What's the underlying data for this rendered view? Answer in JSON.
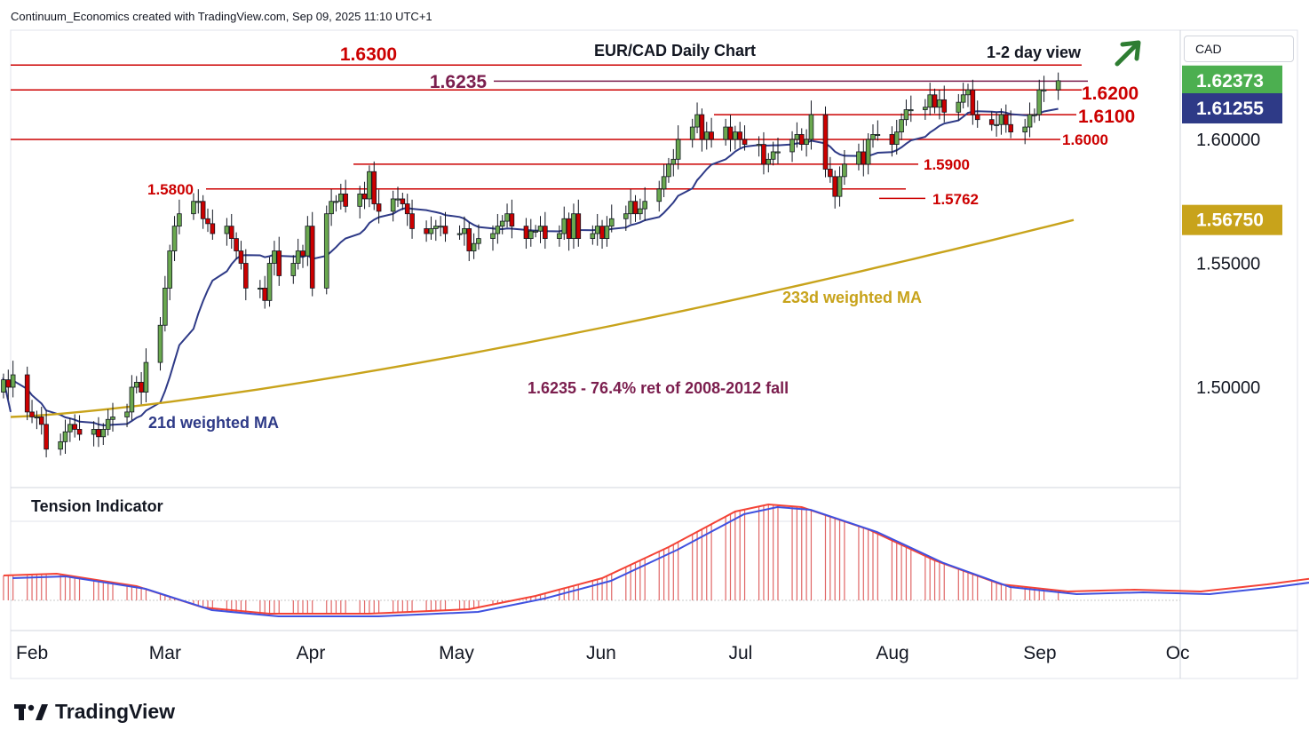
{
  "header": {
    "credit": "Continuum_Economics created with TradingView.com, Sep 09, 2025 11:10 UTC+1"
  },
  "brand": {
    "name": "TradingView"
  },
  "price_scale": {
    "currency": "CAD"
  },
  "chart_data": {
    "type": "candlestick",
    "title": "EUR/CAD Daily Chart",
    "view": "1-2 day view",
    "view_direction": "up",
    "months": [
      "Feb",
      "Mar",
      "Apr",
      "May",
      "Jun",
      "Jul",
      "Aug",
      "Sep",
      "Oc"
    ],
    "y_ticks": [
      "1.60000",
      "1.55000",
      "1.50000"
    ],
    "y_range": [
      1.46,
      1.64
    ],
    "price_labels": [
      {
        "value": "1.62373",
        "price": 1.62373,
        "color": "#4caf50"
      },
      {
        "value": "1.61255",
        "price": 1.61255,
        "color": "#2e3a87"
      },
      {
        "value": "1.56750",
        "price": 1.5675,
        "color": "#c8a31b"
      }
    ],
    "levels": [
      {
        "label": "1.6300",
        "price": 1.63
      },
      {
        "label": "1.6235",
        "price": 1.6235
      },
      {
        "label": "1.6200",
        "price": 1.62
      },
      {
        "label": "1.6100",
        "price": 1.61
      },
      {
        "label": "1.6000",
        "price": 1.6
      },
      {
        "label": "1.5900",
        "price": 1.59
      },
      {
        "label": "1.5800",
        "price": 1.58
      },
      {
        "label": "1.5762",
        "price": 1.5762
      }
    ],
    "annotations": {
      "ma21": "21d weighted MA",
      "ma233": "233d weighted MA",
      "note": "1.6235 - 76.4% ret of 2008-2012 fall",
      "indicator": "Tension Indicator"
    },
    "candles": {
      "start": "2025-01-29",
      "closes": [
        1.503,
        1.5,
        1.505,
        1.49,
        1.488,
        1.488,
        1.485,
        1.475,
        1.478,
        1.482,
        1.485,
        1.483,
        1.481,
        1.483,
        1.48,
        1.483,
        1.487,
        1.488,
        1.49,
        1.5,
        1.502,
        1.498,
        1.51,
        1.525,
        1.54,
        1.555,
        1.565,
        1.57,
        1.575,
        1.575,
        1.568,
        1.566,
        1.562,
        1.565,
        1.56,
        1.555,
        1.55,
        1.54,
        1.54,
        1.535,
        1.55,
        1.555,
        1.545,
        1.55,
        1.555,
        1.553,
        1.565,
        1.54,
        1.57,
        1.575,
        1.575,
        1.578,
        1.573,
        1.578,
        1.576,
        1.587,
        1.574,
        1.571,
        1.576,
        1.576,
        1.574,
        1.57,
        1.564,
        1.562,
        1.564,
        1.565,
        1.565,
        1.562,
        1.562,
        1.564,
        1.555,
        1.558,
        1.56,
        1.562,
        1.565,
        1.567,
        1.57,
        1.565,
        1.56,
        1.563,
        1.563,
        1.565,
        1.56,
        1.562,
        1.568,
        1.56,
        1.57,
        1.56,
        1.562,
        1.565,
        1.56,
        1.565,
        1.568,
        1.57,
        1.575,
        1.57,
        1.572,
        1.575,
        1.58,
        1.585,
        1.59,
        1.592,
        1.6,
        1.605,
        1.61,
        1.6,
        1.603,
        1.6,
        1.605,
        1.6,
        1.603,
        1.6,
        1.598,
        1.598,
        1.59,
        1.592,
        1.595,
        1.595,
        1.6,
        1.602,
        1.598,
        1.6,
        1.61,
        1.588,
        1.585,
        1.577,
        1.585,
        1.59,
        1.595,
        1.59,
        1.6,
        1.602,
        1.602,
        1.598,
        1.603,
        1.608,
        1.612,
        1.612,
        1.613,
        1.618,
        1.613,
        1.616,
        1.611,
        1.615,
        1.618,
        1.62,
        1.61,
        1.608,
        1.606,
        1.606,
        1.61,
        1.606,
        1.603,
        1.605,
        1.61,
        1.61,
        1.62,
        1.62,
        1.6237
      ],
      "opens": [
        1.498,
        1.503,
        1.5,
        1.505,
        1.49,
        1.488,
        1.488,
        1.485,
        1.475,
        1.478,
        1.482,
        1.485,
        1.483,
        1.481,
        1.483,
        1.48,
        1.483,
        1.487,
        1.488,
        1.49,
        1.5,
        1.502,
        1.498,
        1.51,
        1.525,
        1.54,
        1.555,
        1.565,
        1.57,
        1.575,
        1.575,
        1.568,
        1.566,
        1.562,
        1.565,
        1.56,
        1.555,
        1.55,
        1.54,
        1.54,
        1.535,
        1.55,
        1.555,
        1.545,
        1.55,
        1.555,
        1.553,
        1.565,
        1.54,
        1.57,
        1.575,
        1.575,
        1.578,
        1.573,
        1.578,
        1.576,
        1.587,
        1.574,
        1.571,
        1.576,
        1.576,
        1.574,
        1.57,
        1.564,
        1.562,
        1.564,
        1.565,
        1.565,
        1.562,
        1.562,
        1.564,
        1.555,
        1.558,
        1.56,
        1.562,
        1.565,
        1.567,
        1.57,
        1.565,
        1.56,
        1.563,
        1.563,
        1.565,
        1.56,
        1.562,
        1.568,
        1.56,
        1.57,
        1.56,
        1.562,
        1.565,
        1.56,
        1.565,
        1.568,
        1.57,
        1.575,
        1.57,
        1.572,
        1.575,
        1.58,
        1.585,
        1.59,
        1.592,
        1.6,
        1.605,
        1.61,
        1.6,
        1.603,
        1.6,
        1.605,
        1.6,
        1.603,
        1.6,
        1.598,
        1.598,
        1.59,
        1.592,
        1.595,
        1.595,
        1.6,
        1.602,
        1.598,
        1.6,
        1.61,
        1.588,
        1.585,
        1.577,
        1.585,
        1.59,
        1.595,
        1.59,
        1.6,
        1.602,
        1.602,
        1.598,
        1.603,
        1.608,
        1.612,
        1.612,
        1.613,
        1.618,
        1.613,
        1.616,
        1.611,
        1.615,
        1.618,
        1.62,
        1.61,
        1.608,
        1.606,
        1.606,
        1.61,
        1.606,
        1.603,
        1.605,
        1.61,
        1.61,
        1.62,
        1.62
      ]
    }
  }
}
